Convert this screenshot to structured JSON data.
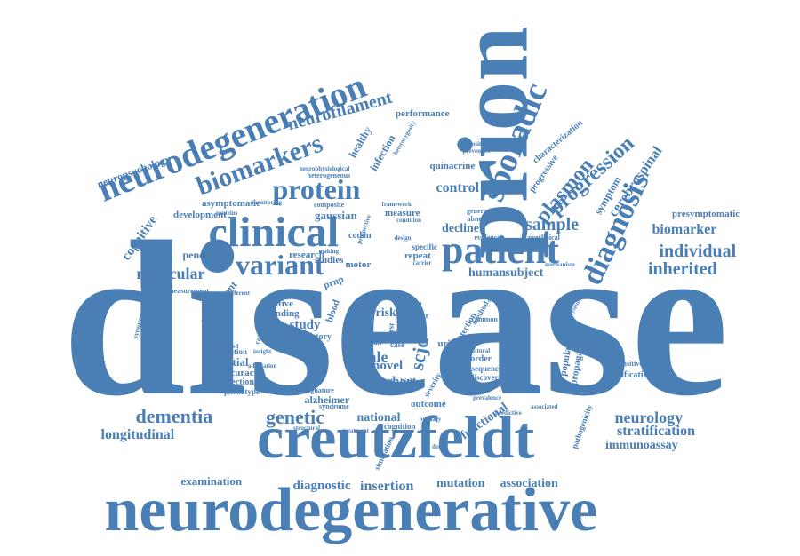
{
  "accent_color": "#4a7fb5",
  "words": {
    "disease": "disease",
    "neurodegenerative": "neurodegenerative",
    "prion": "prion",
    "creutzfeldt": "creutzfeldt",
    "neurodegeneration": "neurodegeneration",
    "clinical": "clinical",
    "patient": "patient",
    "sporadic": "sporadic",
    "biomarkers": "biomarkers",
    "protein": "protein",
    "variant": "variant",
    "diagnosis": "diagnosis",
    "plasmon": "plasmon",
    "progression": "progression",
    "neurofilament": "neurofilament",
    "dementia": "dementia",
    "genetic": "genetic",
    "neurology": "neurology",
    "stratification": "stratification",
    "immunoassay": "immunoassay",
    "individual": "individual",
    "inherited": "inherited",
    "biomarker": "biomarker",
    "cerebrospinal": "cerebrospinal",
    "sample": "sample",
    "longitudinal": "longitudinal",
    "examination": "examination",
    "diagnostic": "diagnostic",
    "insertion": "insertion",
    "mutation": "mutation",
    "association": "association",
    "molecular": "molecular",
    "cognitive": "cognitive",
    "neuropsychology": "neuropsychology",
    "development": "development",
    "asymptomatic": "asymptomatic",
    "presymptomatic": "presymptomatic",
    "control": "control",
    "gaussian": "gaussian",
    "quinacrine": "quinacrine",
    "healthy": "healthy",
    "infection": "infection",
    "performance": "performance",
    "characterization": "characterization",
    "progressive": "progressive",
    "symptom": "symptom",
    "decline": "decline",
    "human": "human",
    "subject": "subject",
    "scjd": "scjd",
    "scale": "scale",
    "novel": "novel",
    "cohort": "cohort",
    "study": "study",
    "risk": "risk",
    "national": "national",
    "functional": "functional",
    "potential": "potential",
    "interpretation": "interpretation",
    "participant": "participant",
    "penetrance": "penetrance",
    "research": "research",
    "measurement": "measurement",
    "positive": "positive",
    "finding": "finding",
    "history": "history",
    "accuracy": "accuracy",
    "sectional": "sectional",
    "phenotype": "phenotype",
    "evaluation": "evaluation",
    "outcome": "outcome",
    "alzheimer": "alzheimer",
    "identification": "identification",
    "population": "population",
    "propagation": "propagation",
    "disorder": "disorder",
    "sequence": "sequence",
    "discovery": "discovery",
    "ultrasensitive": "ultrasensitive",
    "measure": "measure",
    "studies": "studies",
    "motor": "motor",
    "codon": "codon",
    "repeat": "repeat",
    "blood": "blood",
    "light": "light",
    "year": "year",
    "urine": "urine",
    "detection": "detection",
    "case": "case",
    "trial": "trial",
    "chain": "chain",
    "cognition": "cognition",
    "signature": "signature",
    "composite": "composite",
    "heterogeneous": "heterogeneous",
    "neurophysiological": "neurophysiological",
    "evidence": "evidence",
    "preclinical": "preclinical",
    "abnormal": "abnormal",
    "generation": "generation",
    "specific": "specific",
    "prnp": "prnp",
    "simulation": "simulation",
    "mechanism": "mechanism",
    "severity": "severity",
    "analysis": "analysis",
    "causal": "causal",
    "symptomatic": "symptomatic",
    "conversion": "conversion",
    "adaptation": "adaptation",
    "diagnosing": "diagnosing",
    "preventive": "preventive",
    "method": "method",
    "common": "common",
    "biology": "biology",
    "design": "design",
    "carrier": "carrier",
    "based": "based",
    "rate": "rate",
    "test": "test",
    "model": "model",
    "different": "different",
    "increased": "increased",
    "pathogenicity": "pathogenicity",
    "associated": "associated",
    "predictive": "predictive",
    "prevalence": "prevalence",
    "detect": "detect",
    "heterozygosity": "heterozygosity",
    "syndrome": "syndrome",
    "framework": "framework",
    "condition": "condition",
    "making": "making",
    "monitoring": "monitoring",
    "prospective": "prospective",
    "primary": "primary",
    "treatment": "treatment",
    "structural": "structural",
    "natural": "natural",
    "insight": "insight",
    "proteins": "proteins",
    "dysfunction": "dysfunction"
  }
}
